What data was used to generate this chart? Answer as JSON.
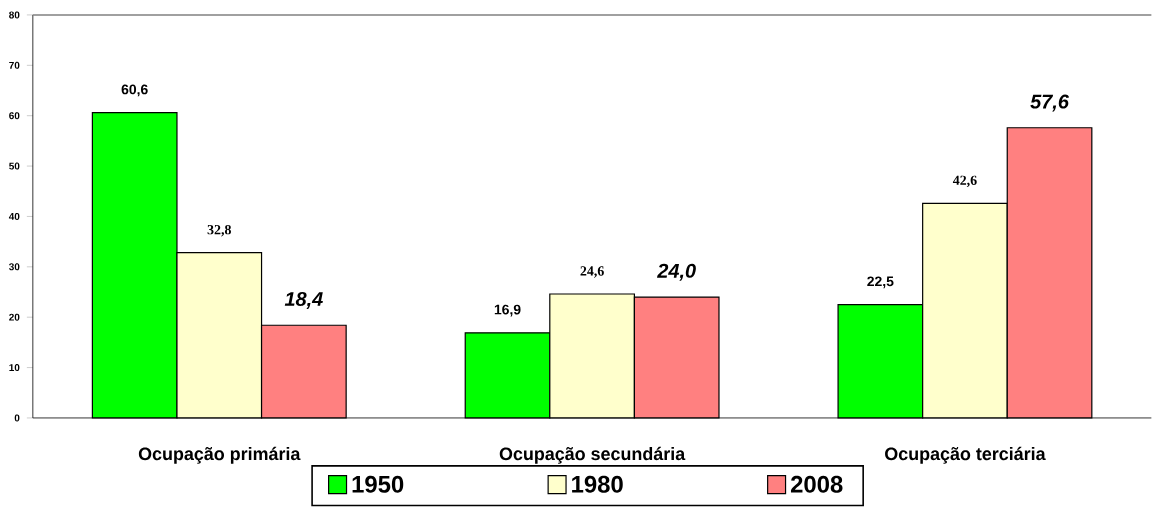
{
  "chart_data": {
    "type": "bar",
    "categories": [
      "Ocupação primária",
      "Ocupação secundária",
      "Ocupação terciária"
    ],
    "series": [
      {
        "name": "1950",
        "color": "#00ff00",
        "values": [
          60.6,
          16.9,
          22.5
        ],
        "value_labels": [
          "60,6",
          "16,9",
          "22,5"
        ]
      },
      {
        "name": "1980",
        "color": "#ffffcc",
        "values": [
          32.8,
          24.6,
          42.6
        ],
        "value_labels": [
          "32,8",
          "24,6",
          "42,6"
        ]
      },
      {
        "name": "2008",
        "color": "#ff8080",
        "values": [
          18.4,
          24.0,
          57.6
        ],
        "value_labels": [
          "18,4",
          "24,0",
          "57,6"
        ]
      }
    ],
    "ylim": [
      0,
      80
    ],
    "yticks": [
      0,
      10,
      20,
      30,
      40,
      50,
      60,
      70,
      80
    ],
    "grid": false,
    "legend": "bottom"
  }
}
